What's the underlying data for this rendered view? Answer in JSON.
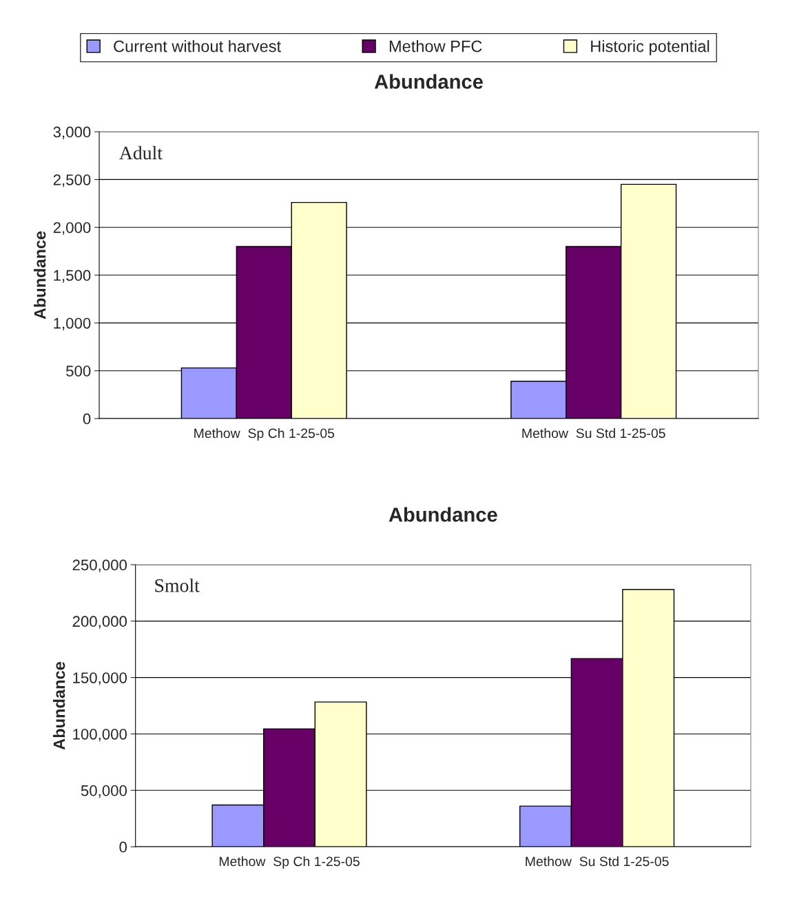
{
  "chart_data": [
    {
      "type": "bar",
      "title": "Abundance",
      "ylabel": "Abundance",
      "categories": [
        "Methow  Sp Ch 1-25-05",
        "Methow  Su Std 1-25-05"
      ],
      "series": [
        {
          "name": "Current without harvest",
          "color": "#9999ff",
          "values": [
            530,
            390
          ]
        },
        {
          "name": "Methow PFC",
          "color": "#660066",
          "values": [
            1800,
            1800
          ]
        },
        {
          "name": "Historic potential",
          "color": "#ffffcc",
          "values": [
            2260,
            2450
          ]
        }
      ],
      "ylim": [
        0,
        3000
      ],
      "yticks": [
        0,
        500,
        {
          "value": 1000,
          "label": "1,000"
        },
        {
          "value": 1500,
          "label": "1,500"
        },
        {
          "value": 2000,
          "label": "2,000"
        },
        {
          "value": 2500,
          "label": "2,500"
        },
        {
          "value": 3000,
          "label": "3,000"
        }
      ],
      "grid": "y",
      "legend": "top",
      "annotations": [
        "Adult"
      ]
    },
    {
      "type": "bar",
      "title": "Abundance",
      "ylabel": "Abundance",
      "categories": [
        "Methow  Sp Ch 1-25-05",
        "Methow  Su Std 1-25-05"
      ],
      "series": [
        {
          "color": "#9999ff",
          "values": [
            37000,
            36000
          ]
        },
        {
          "color": "#660066",
          "values": [
            104500,
            166800
          ]
        },
        {
          "color": "#ffffcc",
          "values": [
            128300,
            228000
          ]
        }
      ],
      "ylim": [
        0,
        250000
      ],
      "yticks": [
        0,
        {
          "value": 50000,
          "label": "50,000"
        },
        {
          "value": 100000,
          "label": "100,000"
        },
        {
          "value": 150000,
          "label": "150,000"
        },
        {
          "value": 200000,
          "label": "200,000"
        },
        {
          "value": 250000,
          "label": "250,000"
        }
      ],
      "grid": "y",
      "annotations": [
        "Smolt"
      ]
    }
  ]
}
